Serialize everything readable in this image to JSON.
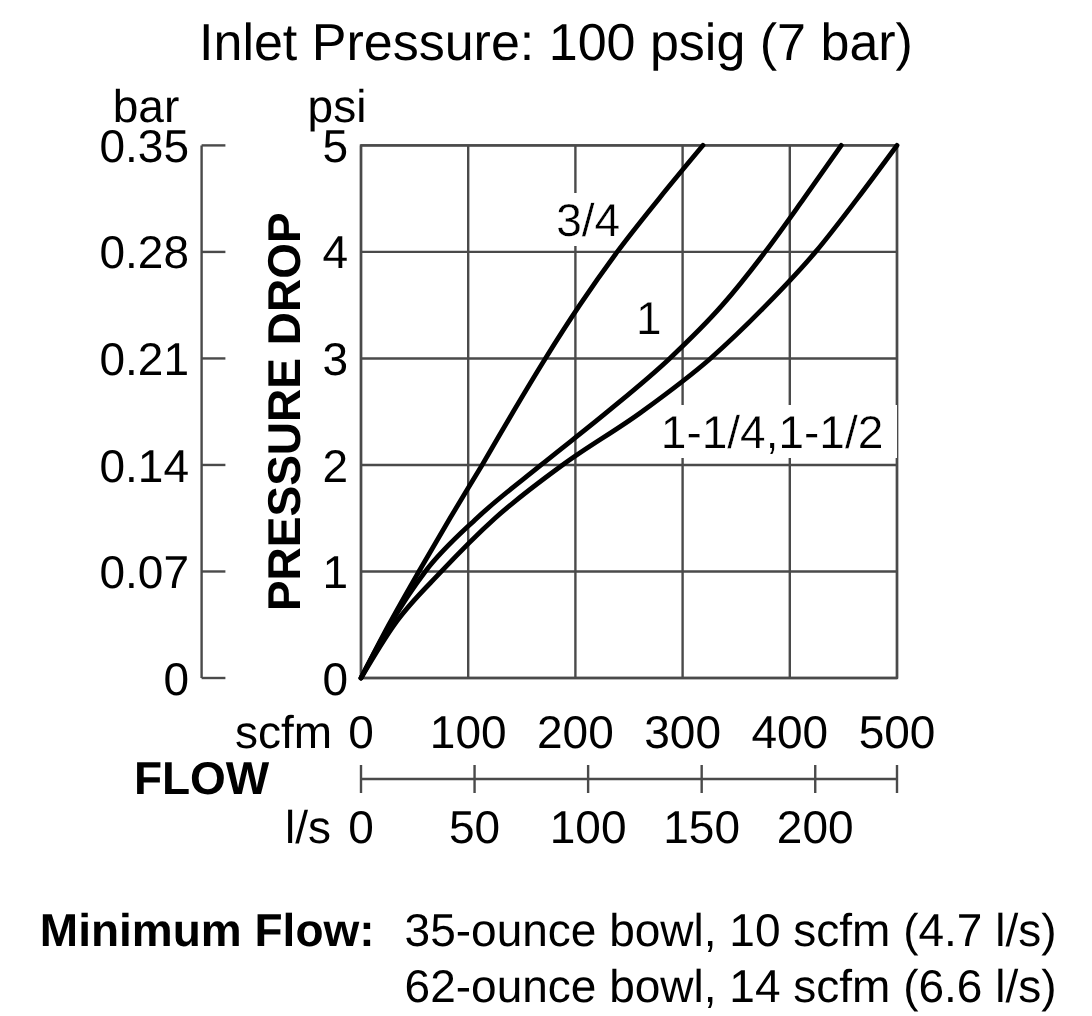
{
  "chart_data": {
    "type": "line",
    "title": "Inlet Pressure: 100 psig (7 bar)",
    "xlabel": "scfm",
    "x2label": "l/s",
    "ylabel": "psi",
    "y2label": "bar",
    "series": [
      {
        "name": "3/4",
        "color": "#000000",
        "x": [
          0,
          26,
          54,
          83,
          113,
          142,
          172,
          204,
          239,
          278,
          319
        ],
        "values": [
          0,
          0.5,
          1,
          1.5,
          2,
          2.5,
          3,
          3.5,
          4,
          4.5,
          5
        ]
      },
      {
        "name": "1",
        "color": "#000000",
        "x": [
          0,
          27,
          60,
          108,
          168,
          230,
          288,
          337,
          377,
          413,
          448
        ],
        "values": [
          0,
          0.5,
          1,
          1.5,
          2,
          2.5,
          3,
          3.5,
          4,
          4.5,
          5
        ]
      },
      {
        "name": "1-1/4,1-1/2",
        "color": "#000000",
        "x": [
          0,
          31,
          75,
          125,
          188,
          262,
          326,
          378,
          424,
          463,
          500
        ],
        "values": [
          0,
          0.5,
          1,
          1.5,
          2,
          2.5,
          3,
          3.5,
          4,
          4.5,
          5
        ]
      }
    ],
    "xlim": [
      0,
      500
    ],
    "xticks": [
      0,
      100,
      200,
      300,
      400,
      500
    ],
    "x2lim": [
      0,
      236
    ],
    "x2ticks": [
      0,
      50,
      100,
      150,
      200,
      {
        "value": 236,
        "label": null
      }
    ],
    "ylim": [
      0,
      5
    ],
    "yticks": [
      0,
      1,
      2,
      3,
      4,
      5
    ],
    "y2lim": [
      0,
      0.35
    ],
    "y2ticks": [
      0,
      0.07,
      0.14,
      0.21,
      0.28,
      0.35
    ],
    "grid": true,
    "line_style": "solid",
    "annotations": [
      "PRESSURE DROP",
      "FLOW",
      "Minimum Flow:",
      "35-ounce bowl, 10 scfm (4.7 l/s)",
      "62-ounce bowl, 14 scfm (6.6 l/s)"
    ]
  }
}
